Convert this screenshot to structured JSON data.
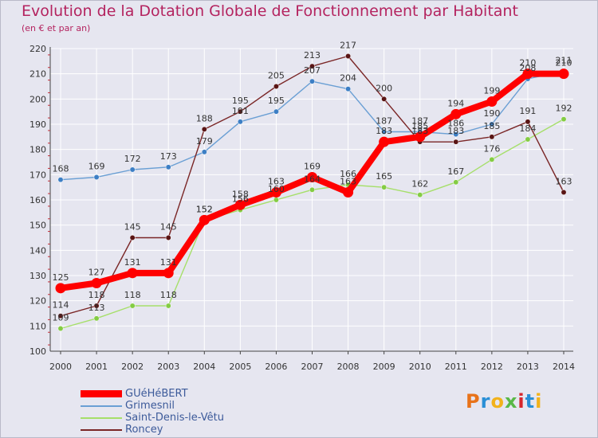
{
  "header": {
    "title": "Evolution de la Dotation Globale de Fonctionnement par Habitant",
    "subtitle": "(en € et par an)"
  },
  "logo": {
    "text": "Proxiti"
  },
  "colors": {
    "title": "#b4235f",
    "axis_text": "#333333",
    "legend_text": "#3c5a9a",
    "background": "#e6e6f0",
    "grid": "#ffffff"
  },
  "chart_data": {
    "type": "line",
    "title": "Evolution de la Dotation Globale de Fonctionnement par Habitant",
    "subtitle": "(en € et par an)",
    "xlabel": "",
    "ylabel": "",
    "ylim": [
      100,
      220
    ],
    "yticks": [
      100,
      110,
      120,
      130,
      140,
      150,
      160,
      170,
      180,
      190,
      200,
      210,
      220
    ],
    "grid": true,
    "legend_position": "bottom-left",
    "x": [
      "2000",
      "2001",
      "2002",
      "2003",
      "2004",
      "2005",
      "2006",
      "2007",
      "2008",
      "2009",
      "2010",
      "2011",
      "2012",
      "2013",
      "2014"
    ],
    "series": [
      {
        "name": "GUéHéBERT",
        "color": "#ff0000",
        "marker_color": "#ff0000",
        "emphasis": true,
        "values": [
          125,
          127,
          131,
          131,
          152,
          158,
          163,
          169,
          163,
          183,
          185,
          194,
          199,
          210,
          210
        ]
      },
      {
        "name": "Grimesnil",
        "color": "#6a9fd4",
        "marker_color": "#3d7fc5",
        "emphasis": false,
        "values": [
          168,
          169,
          172,
          173,
          179,
          191,
          195,
          207,
          204,
          187,
          187,
          186,
          190,
          208,
          211
        ]
      },
      {
        "name": "Saint-Denis-le-Vêtu",
        "color": "#a6df6a",
        "marker_color": "#84cc44",
        "emphasis": false,
        "values": [
          109,
          113,
          118,
          118,
          152,
          156,
          160,
          164,
          166,
          165,
          162,
          167,
          176,
          184,
          192
        ]
      },
      {
        "name": "Roncey",
        "color": "#7a2626",
        "marker_color": "#5a1515",
        "emphasis": false,
        "values": [
          114,
          118,
          145,
          145,
          188,
          195,
          205,
          213,
          217,
          200,
          183,
          183,
          185,
          191,
          163
        ]
      }
    ]
  }
}
